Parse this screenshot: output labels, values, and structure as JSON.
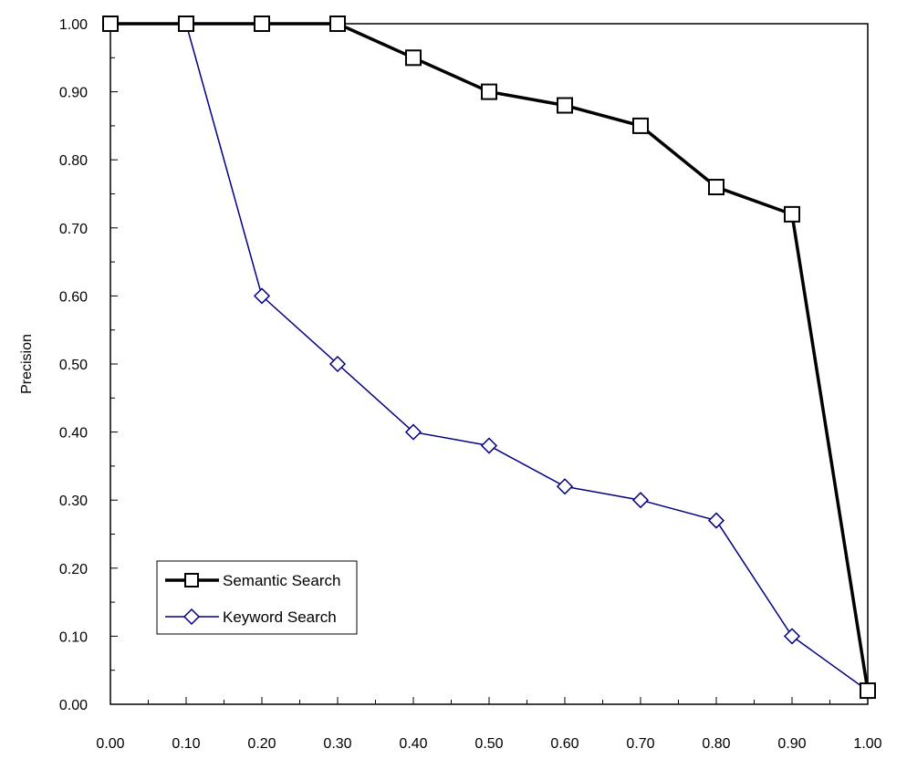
{
  "chart_data": {
    "type": "line",
    "title": "",
    "xlabel": "",
    "ylabel": "Precision",
    "xlim": [
      0,
      1
    ],
    "ylim": [
      0,
      1
    ],
    "x_ticks": [
      "0.00",
      "0.10",
      "0.20",
      "0.30",
      "0.40",
      "0.50",
      "0.60",
      "0.70",
      "0.80",
      "0.90",
      "1.00"
    ],
    "y_ticks": [
      "0.00",
      "0.10",
      "0.20",
      "0.30",
      "0.40",
      "0.50",
      "0.60",
      "0.70",
      "0.80",
      "0.90",
      "1.00"
    ],
    "x": [
      0.0,
      0.1,
      0.2,
      0.3,
      0.4,
      0.5,
      0.6,
      0.7,
      0.8,
      0.9,
      1.0
    ],
    "series": [
      {
        "name": "Semantic Search",
        "values": [
          1.0,
          1.0,
          1.0,
          1.0,
          0.95,
          0.9,
          0.88,
          0.85,
          0.76,
          0.72,
          0.02
        ],
        "color": "#000000",
        "marker": "square"
      },
      {
        "name": "Keyword Search",
        "values": [
          1.0,
          1.0,
          0.6,
          0.5,
          0.4,
          0.38,
          0.32,
          0.3,
          0.27,
          0.1,
          0.02
        ],
        "color": "#000080",
        "marker": "diamond"
      }
    ],
    "grid": false,
    "legend_position": "bottom-left"
  }
}
